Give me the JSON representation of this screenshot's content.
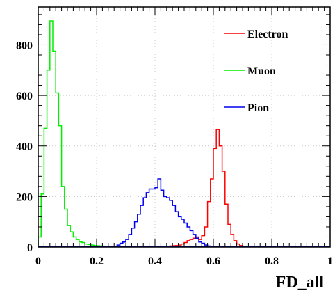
{
  "chart_data": {
    "type": "line",
    "title": "",
    "xlabel": "FD_all",
    "ylabel": "",
    "xlim": [
      0,
      1
    ],
    "ylim": [
      0,
      950
    ],
    "x_ticks": [
      {
        "value": 0,
        "label": "0"
      },
      {
        "value": 0.2,
        "label": "0.2"
      },
      {
        "value": 0.4,
        "label": "0.4"
      },
      {
        "value": 0.6,
        "label": "0.6"
      },
      {
        "value": 0.8,
        "label": "0.8"
      },
      {
        "value": 1,
        "label": "1"
      }
    ],
    "y_ticks": [
      {
        "value": 0,
        "label": "0"
      },
      {
        "value": 200,
        "label": "200"
      },
      {
        "value": 400,
        "label": "400"
      },
      {
        "value": 600,
        "label": "600"
      },
      {
        "value": 800,
        "label": "800"
      }
    ],
    "grid": true,
    "legend_position": "top-right",
    "bin_width": 0.01,
    "series": [
      {
        "name": "Electron",
        "color": "#ff0000",
        "bin_starts": [
          0.42,
          0.43,
          0.44,
          0.45,
          0.46,
          0.47,
          0.48,
          0.49,
          0.5,
          0.51,
          0.52,
          0.53,
          0.54,
          0.55,
          0.56,
          0.57,
          0.58,
          0.59,
          0.6,
          0.61,
          0.62,
          0.63,
          0.64,
          0.65,
          0.66,
          0.67,
          0.68,
          0.69,
          0.7,
          0.71
        ],
        "values": [
          1,
          2,
          3,
          4,
          5,
          6,
          8,
          12,
          18,
          25,
          30,
          35,
          40,
          30,
          45,
          80,
          180,
          270,
          390,
          465,
          400,
          300,
          170,
          90,
          50,
          25,
          12,
          6,
          3,
          1
        ]
      },
      {
        "name": "Muon",
        "color": "#00ee00",
        "bin_starts": [
          0.0,
          0.01,
          0.02,
          0.03,
          0.04,
          0.05,
          0.06,
          0.07,
          0.08,
          0.09,
          0.1,
          0.11,
          0.12,
          0.13,
          0.14,
          0.15,
          0.16,
          0.17,
          0.18,
          0.19,
          0.2,
          0.21,
          0.22,
          0.23,
          0.24
        ],
        "values": [
          40,
          210,
          470,
          700,
          895,
          775,
          610,
          480,
          240,
          150,
          85,
          60,
          40,
          30,
          20,
          18,
          12,
          10,
          8,
          6,
          5,
          4,
          3,
          2,
          1
        ]
      },
      {
        "name": "Pion",
        "color": "#0000ee",
        "bin_starts": [
          0.26,
          0.27,
          0.28,
          0.29,
          0.3,
          0.31,
          0.32,
          0.33,
          0.34,
          0.35,
          0.36,
          0.37,
          0.38,
          0.39,
          0.4,
          0.41,
          0.42,
          0.43,
          0.44,
          0.45,
          0.46,
          0.47,
          0.48,
          0.49,
          0.5,
          0.51,
          0.52,
          0.53,
          0.54,
          0.55,
          0.56,
          0.57,
          0.58
        ],
        "values": [
          3,
          8,
          15,
          20,
          30,
          50,
          75,
          100,
          130,
          165,
          195,
          215,
          230,
          230,
          235,
          270,
          225,
          200,
          195,
          185,
          165,
          140,
          120,
          110,
          95,
          80,
          65,
          50,
          35,
          20,
          15,
          8,
          4
        ]
      }
    ]
  }
}
